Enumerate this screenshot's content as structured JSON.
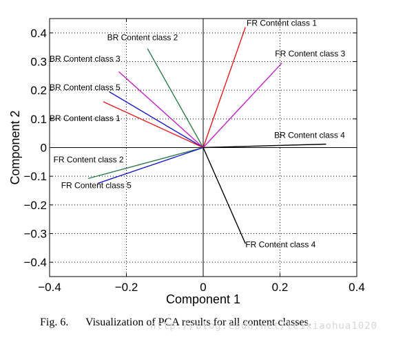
{
  "chart_data": {
    "type": "line",
    "xlabel": "Component 1",
    "ylabel": "Component 2",
    "xlim": [
      -0.4,
      0.4
    ],
    "ylim": [
      -0.45,
      0.45
    ],
    "xticks": [
      -0.4,
      -0.2,
      0,
      0.2,
      0.4
    ],
    "xtick_labels": [
      "−0.4",
      "−0.2",
      "0",
      "0.2",
      "0.4"
    ],
    "yticks": [
      -0.4,
      -0.3,
      -0.2,
      -0.1,
      0,
      0.1,
      0.2,
      0.3,
      0.4
    ],
    "ytick_labels": [
      "−0.4",
      "−0.3",
      "−0.2",
      "−0.1",
      "0",
      "0.1",
      "0.2",
      "0.3",
      "0.4"
    ],
    "grid": true,
    "series": [
      {
        "name": "FR Content class 1",
        "color": "#e8191c",
        "x": [
          0,
          0.11
        ],
        "y": [
          0,
          0.42
        ]
      },
      {
        "name": "FR Content class 3",
        "color": "#c21fc8",
        "x": [
          0,
          0.205
        ],
        "y": [
          0,
          0.295
        ]
      },
      {
        "name": "BR Content class 2",
        "color": "#2e7d4a",
        "x": [
          0,
          -0.145
        ],
        "y": [
          0,
          0.345
        ]
      },
      {
        "name": "BR Content class 3",
        "color": "#c21fc8",
        "x": [
          0,
          -0.22
        ],
        "y": [
          0,
          0.265
        ]
      },
      {
        "name": "BR Content class 5",
        "color": "#1a1acc",
        "x": [
          0,
          -0.245
        ],
        "y": [
          0,
          0.195
        ]
      },
      {
        "name": "BR Content class 1",
        "color": "#e8191c",
        "x": [
          0,
          -0.26
        ],
        "y": [
          0,
          0.16
        ]
      },
      {
        "name": "BR Content class 4",
        "color": "#000000",
        "x": [
          0,
          0.32
        ],
        "y": [
          0,
          0.012
        ]
      },
      {
        "name": "FR Content class 2",
        "color": "#2e7d4a",
        "x": [
          0,
          -0.3
        ],
        "y": [
          0,
          -0.108
        ]
      },
      {
        "name": "FR Content class 5",
        "color": "#1a1acc",
        "x": [
          0,
          -0.275
        ],
        "y": [
          0,
          -0.125
        ]
      },
      {
        "name": "FR Content class 4",
        "color": "#000000",
        "x": [
          0,
          0.11
        ],
        "y": [
          0,
          -0.335
        ]
      }
    ],
    "annotations": [
      {
        "text": "FR Content class 1",
        "x": 0.113,
        "y": 0.425
      },
      {
        "text": "FR Content class 3",
        "x": 0.187,
        "y": 0.318
      },
      {
        "text": "BR Content class 2",
        "x": -0.25,
        "y": 0.375
      },
      {
        "text": "BR Content class 3",
        "x": -0.4,
        "y": 0.3
      },
      {
        "text": "BR Content class 5",
        "x": -0.4,
        "y": 0.2
      },
      {
        "text": "BR Content class 1",
        "x": -0.4,
        "y": 0.092
      },
      {
        "text": "BR Content class 4",
        "x": 0.185,
        "y": 0.034
      },
      {
        "text": "FR Content class 2",
        "x": -0.39,
        "y": -0.052
      },
      {
        "text": "FR Content class 5",
        "x": -0.37,
        "y": -0.142
      },
      {
        "text": "FR Content class 4",
        "x": 0.11,
        "y": -0.348
      }
    ]
  },
  "caption": {
    "figure_number": "Fig. 6.",
    "text": "Visualization of PCA results for all content classes."
  },
  "watermark": "http://blog.csdn.net/leixiaohua1020"
}
